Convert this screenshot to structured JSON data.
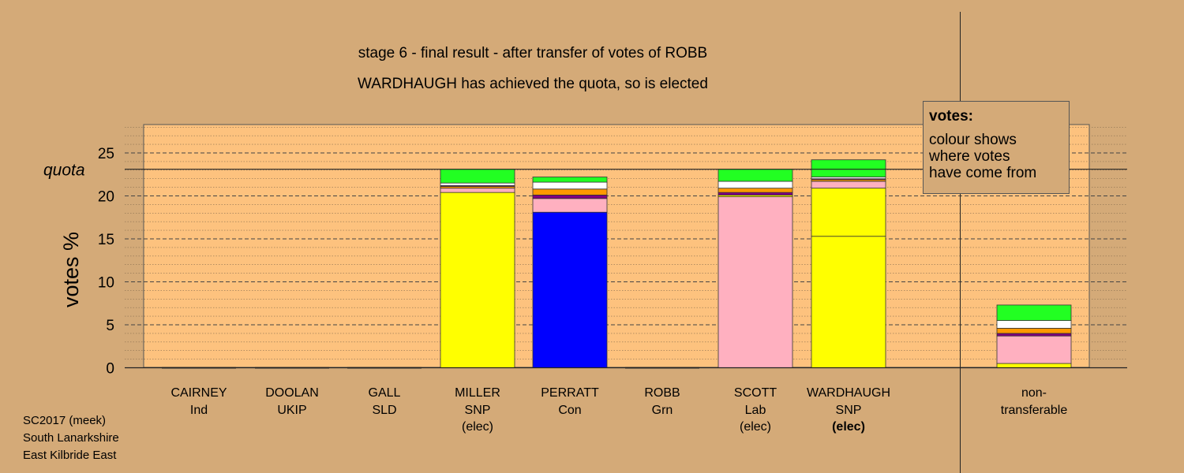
{
  "chart_data": {
    "type": "bar",
    "title": "stage 6 - final result - after transfer of votes of ROBB",
    "subtitle": "WARDHAUGH has achieved the quota, so is elected",
    "ylabel": "votes %",
    "ylim": [
      0,
      28
    ],
    "yticks": [
      0,
      5,
      10,
      15,
      20,
      25
    ],
    "quota_label": "quota",
    "quota": 23.1,
    "colors": {
      "SNP": "#ffff00",
      "Con": "#0000ff",
      "Lab": "#ffb0c0",
      "Grn": "#ff9900",
      "SLD": "#800080",
      "Ind": "#ffffff",
      "UKIP": "#22ff22",
      "chart_area": "#fdc27e",
      "background": "#d4aa78"
    },
    "candidates": [
      {
        "name": "CAIRNEY",
        "party": "Ind",
        "status": "",
        "segments": []
      },
      {
        "name": "DOOLAN",
        "party": "UKIP",
        "status": "",
        "segments": []
      },
      {
        "name": "GALL",
        "party": "SLD",
        "status": "",
        "segments": []
      },
      {
        "name": "MILLER",
        "party": "SNP",
        "status": "(elec)",
        "segments": [
          {
            "from": "SNP",
            "value": 20.4
          },
          {
            "from": "Lab",
            "value": 0.5
          },
          {
            "from": "Grn",
            "value": 0.2
          },
          {
            "from": "SLD",
            "value": 0.1
          },
          {
            "from": "Ind",
            "value": 0.3
          },
          {
            "from": "UKIP",
            "value": 1.6
          }
        ]
      },
      {
        "name": "PERRATT",
        "party": "Con",
        "status": "",
        "segments": [
          {
            "from": "Con",
            "value": 18.1
          },
          {
            "from": "Lab",
            "value": 1.6
          },
          {
            "from": "SLD",
            "value": 0.4
          },
          {
            "from": "Grn",
            "value": 0.7
          },
          {
            "from": "Ind",
            "value": 0.8
          },
          {
            "from": "UKIP",
            "value": 0.6
          }
        ]
      },
      {
        "name": "ROBB",
        "party": "Grn",
        "status": "",
        "segments": []
      },
      {
        "name": "SCOTT",
        "party": "Lab",
        "status": "(elec)",
        "segments": [
          {
            "from": "Lab",
            "value": 19.9
          },
          {
            "from": "SNP",
            "value": 0.2
          },
          {
            "from": "SLD",
            "value": 0.3
          },
          {
            "from": "Grn",
            "value": 0.5
          },
          {
            "from": "Ind",
            "value": 0.8
          },
          {
            "from": "UKIP",
            "value": 1.4
          }
        ]
      },
      {
        "name": "WARDHAUGH",
        "party": "SNP",
        "status": "(elec)",
        "segments": [
          {
            "from": "SNP",
            "value": 15.3
          },
          {
            "from": "SNP",
            "value": 5.6
          },
          {
            "from": "Lab",
            "value": 0.8
          },
          {
            "from": "Grn",
            "value": 0.2
          },
          {
            "from": "SLD",
            "value": 0.1
          },
          {
            "from": "Ind",
            "value": 0.2
          },
          {
            "from": "UKIP",
            "value": 2.0
          }
        ]
      }
    ],
    "non_transferable": {
      "label_line1": "non-",
      "label_line2": "transferable",
      "segments": [
        {
          "from": "SNP",
          "value": 0.5
        },
        {
          "from": "Lab",
          "value": 3.2
        },
        {
          "from": "SLD",
          "value": 0.3
        },
        {
          "from": "Grn",
          "value": 0.6
        },
        {
          "from": "Ind",
          "value": 0.9
        },
        {
          "from": "UKIP",
          "value": 1.8
        }
      ]
    }
  },
  "legend": {
    "heading": "votes:",
    "line1": "colour shows",
    "line2": "where votes",
    "line3": "have come from"
  },
  "footer": {
    "line1": "SC2017 (meek)",
    "line2": "South Lanarkshire",
    "line3": "East Kilbride East"
  }
}
